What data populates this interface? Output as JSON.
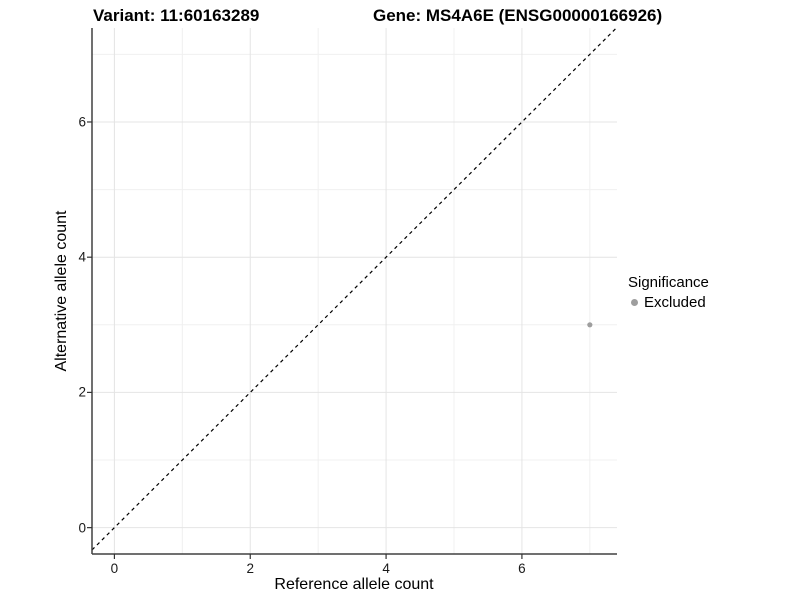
{
  "chart_data": {
    "type": "scatter",
    "titles": {
      "variant": "Variant: 11:60163289",
      "gene": "Gene: MS4A6E (ENSG00000166926)"
    },
    "xlabel": "Reference allele count",
    "ylabel": "Alternative allele count",
    "xlim": [
      -0.33,
      7.4
    ],
    "ylim": [
      -0.39,
      7.39
    ],
    "x_ticks": [
      0,
      2,
      4,
      6
    ],
    "y_ticks": [
      0,
      2,
      4,
      6
    ],
    "x_minor_ticks": [
      1,
      3,
      5,
      7
    ],
    "y_minor_ticks": [
      1,
      3,
      5,
      7
    ],
    "grid": true,
    "series": [
      {
        "name": "Excluded",
        "color": "#9e9e9e",
        "points": [
          {
            "x": 7,
            "y": 3
          }
        ]
      }
    ],
    "reference_line": {
      "type": "identity",
      "equation": "y = x",
      "style": "dashed",
      "color": "#000000"
    },
    "legend_position": "right",
    "legend": {
      "title": "Significance",
      "entries": [
        {
          "label": "Excluded",
          "color": "#9e9e9e"
        }
      ]
    },
    "colors": {
      "background": "#ffffff",
      "grid_major": "#e4e4e4",
      "grid_minor": "#f0f0f0",
      "axis_line": "#404040",
      "tick_mark": "#333333"
    }
  }
}
